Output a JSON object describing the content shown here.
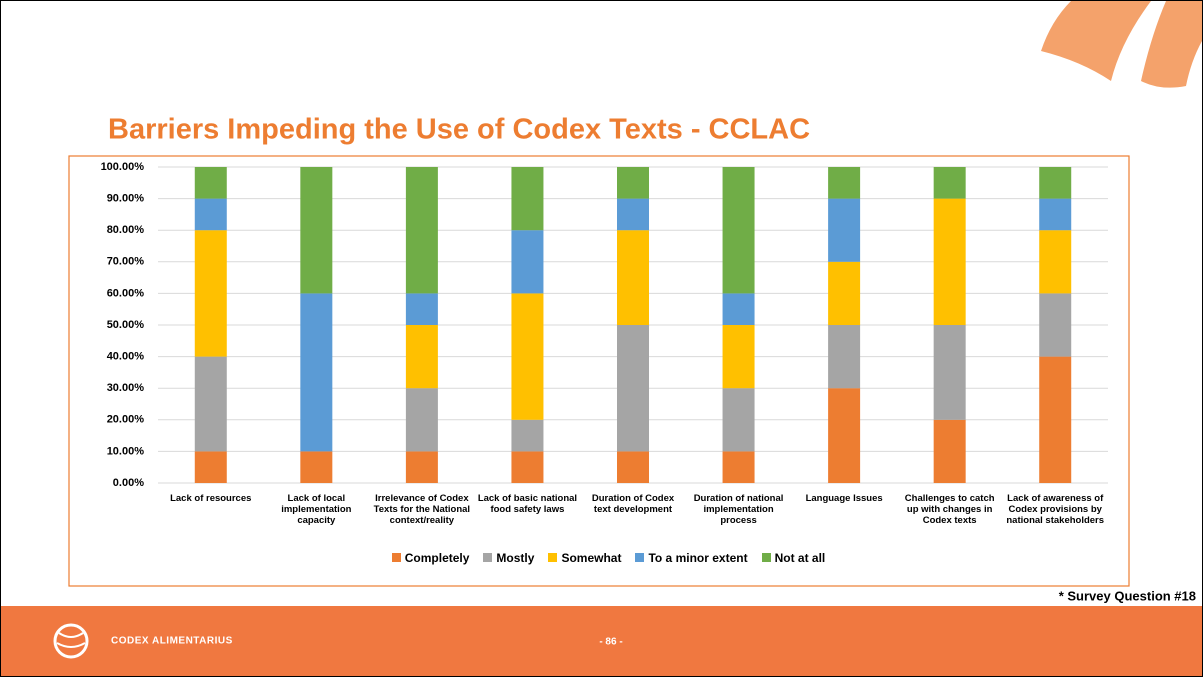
{
  "chart_data": {
    "type": "stacked-bar",
    "title": "Barriers Impeding the Use of Codex Texts - CCLAC",
    "categories": [
      "Lack of resources",
      "Lack of local implementation capacity",
      "Irrelevance of Codex Texts for the National context/reality",
      "Lack of basic national food safety laws",
      "Duration of Codex text development",
      "Duration of national implementation process",
      "Language Issues",
      "Challenges to catch up with changes in Codex texts",
      "Lack of awareness of Codex provisions by national stakeholders"
    ],
    "series": [
      {
        "name": "Completely",
        "color": "#ED7D31",
        "values": [
          10,
          10,
          10,
          10,
          10,
          10,
          30,
          20,
          40
        ]
      },
      {
        "name": "Mostly",
        "color": "#A5A5A5",
        "values": [
          30,
          0,
          20,
          10,
          40,
          20,
          20,
          30,
          20
        ]
      },
      {
        "name": "Somewhat",
        "color": "#FFC000",
        "values": [
          40,
          0,
          20,
          40,
          30,
          20,
          20,
          40,
          20
        ]
      },
      {
        "name": "To a minor extent",
        "color": "#5B9BD5",
        "values": [
          10,
          50,
          10,
          20,
          10,
          10,
          20,
          0,
          10
        ]
      },
      {
        "name": "Not at all",
        "color": "#70AD47",
        "values": [
          10,
          40,
          40,
          20,
          10,
          40,
          10,
          10,
          10
        ]
      }
    ],
    "ylim": [
      0,
      100
    ],
    "yticks": [
      {
        "value": 0,
        "label": "0.00%"
      },
      {
        "value": 10,
        "label": "10.00%"
      },
      {
        "value": 20,
        "label": "20.00%"
      },
      {
        "value": 30,
        "label": "30.00%"
      },
      {
        "value": 40,
        "label": "40.00%"
      },
      {
        "value": 50,
        "label": "50.00%"
      },
      {
        "value": 60,
        "label": "60.00%"
      },
      {
        "value": 70,
        "label": "70.00%"
      },
      {
        "value": 80,
        "label": "80.00%"
      },
      {
        "value": 90,
        "label": "90.00%"
      },
      {
        "value": 100,
        "label": "100.00%"
      }
    ],
    "grid": true,
    "legend": "bottom"
  },
  "footnote": "* Survey Question #18",
  "footer": {
    "brand": "CODEX ALIMENTARIUS",
    "page": "- 86 -"
  }
}
